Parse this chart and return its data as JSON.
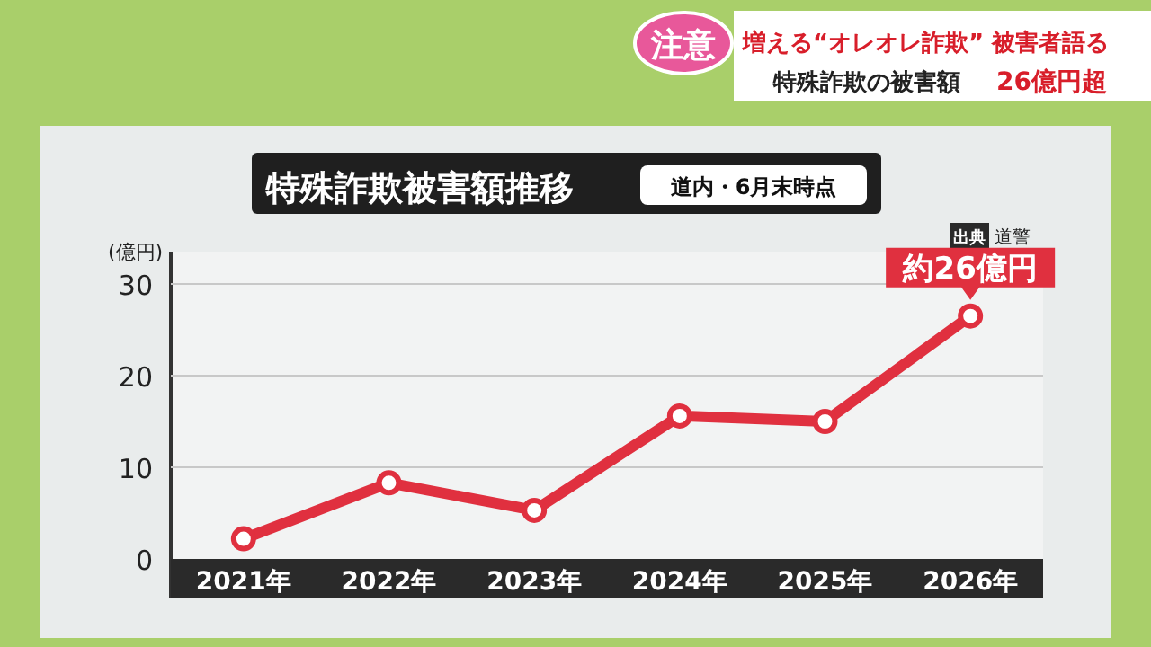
{
  "chart_data": {
    "type": "line",
    "title": "特殊詐欺被害額推移",
    "subtitle": "道内・6月末時点",
    "ylabel": "(億円)",
    "categories": [
      "2021年",
      "2022年",
      "2023年",
      "2024年",
      "2025年",
      "2026年"
    ],
    "series": [
      {
        "color": "#e0303f",
        "values": [
          2.2,
          8.3,
          5.3,
          15.6,
          15.0,
          26.5
        ]
      }
    ],
    "ylim": [
      0,
      30
    ],
    "yticks": [
      0,
      10,
      20,
      30
    ],
    "grid": "y",
    "marker": "circle",
    "line_style": "solid",
    "annotations": [
      "注意",
      "増える“オレオレ詐欺” 被害者語る",
      "特殊詐欺の被害額",
      "26億円超",
      "出典 道警",
      {
        "text": "約26億円",
        "x": "2026年",
        "y": 26.5
      }
    ]
  }
}
